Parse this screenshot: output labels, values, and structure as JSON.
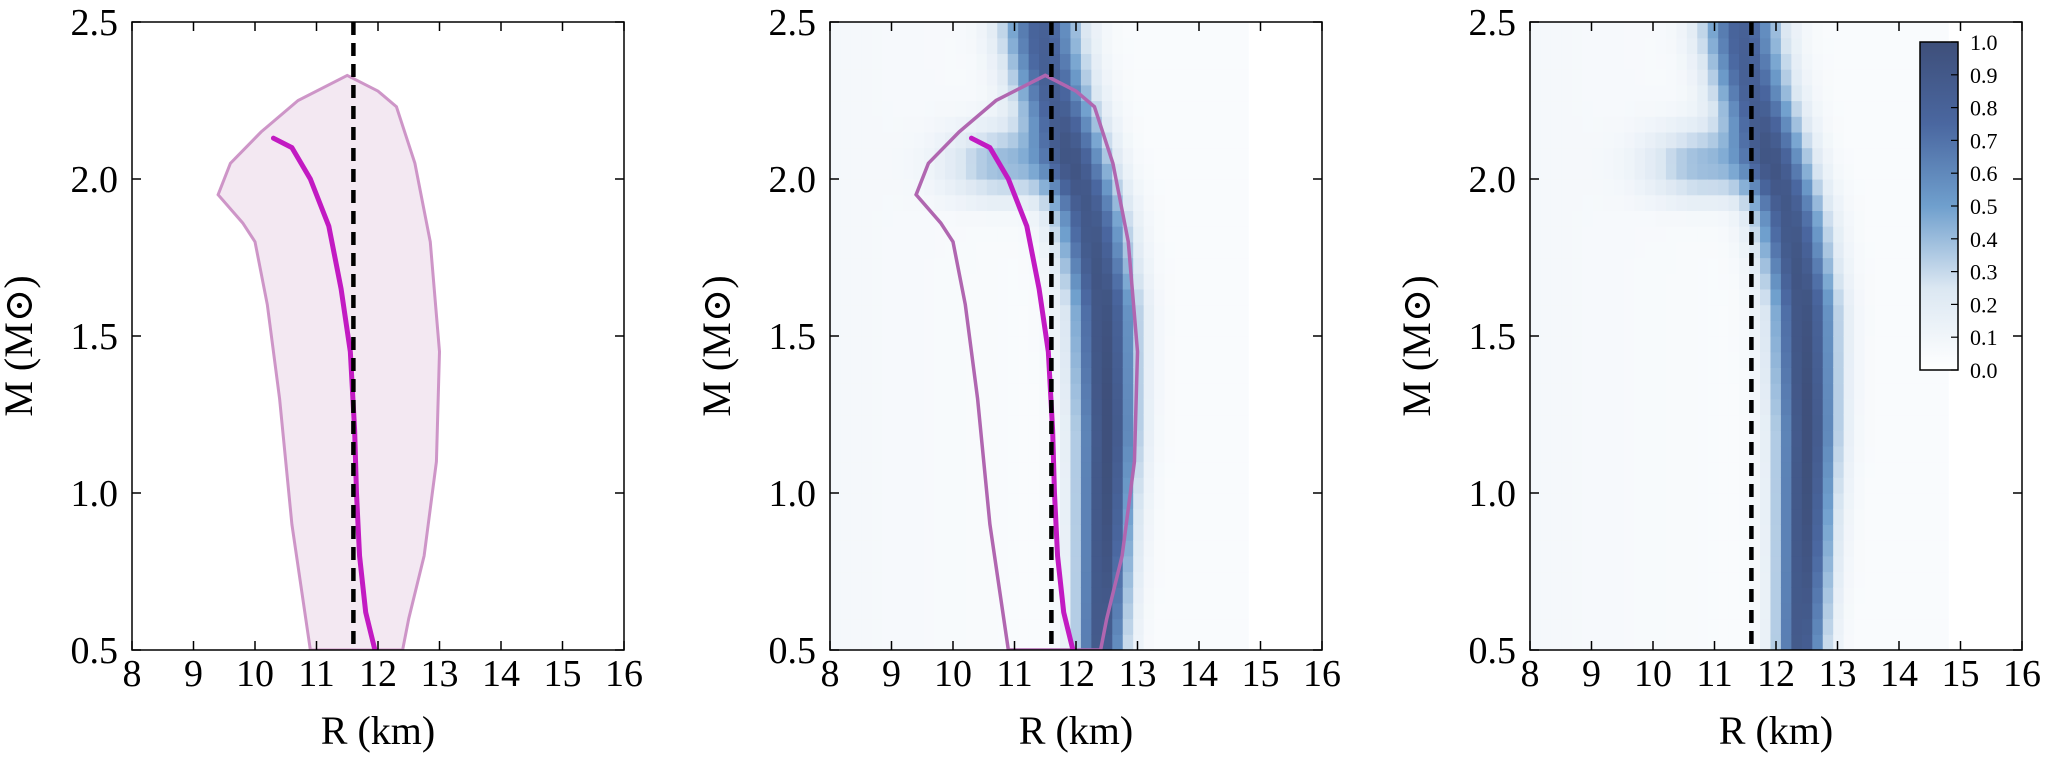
{
  "chart_data": [
    {
      "type": "line",
      "panel": "left",
      "xlabel": "R (km)",
      "ylabel": "M (M⊙)",
      "xlim": [
        8,
        16
      ],
      "ylim": [
        0.5,
        2.5
      ],
      "xticks": [
        "8",
        "9",
        "10",
        "11",
        "12",
        "13",
        "14",
        "15",
        "16"
      ],
      "yticks": [
        "0.5",
        "1.0",
        "1.5",
        "2.0",
        "2.5"
      ],
      "vline": {
        "x": 11.6,
        "style": "dashed",
        "color": "#000000"
      },
      "band": {
        "color": "#c98bc2",
        "fill": "#f3e8f2",
        "outline": [
          [
            10.9,
            0.5
          ],
          [
            10.6,
            0.9
          ],
          [
            10.4,
            1.3
          ],
          [
            10.2,
            1.6
          ],
          [
            10.0,
            1.8
          ],
          [
            9.8,
            1.86
          ],
          [
            9.4,
            1.95
          ],
          [
            9.6,
            2.05
          ],
          [
            10.1,
            2.15
          ],
          [
            10.7,
            2.25
          ],
          [
            11.5,
            2.33
          ],
          [
            12.0,
            2.28
          ],
          [
            12.3,
            2.23
          ],
          [
            12.6,
            2.05
          ],
          [
            12.85,
            1.8
          ],
          [
            13.0,
            1.45
          ],
          [
            12.95,
            1.1
          ],
          [
            12.75,
            0.8
          ],
          [
            12.5,
            0.6
          ],
          [
            12.4,
            0.5
          ]
        ]
      },
      "series": [
        {
          "color": "#c21ac2",
          "points": [
            [
              10.3,
              2.13
            ],
            [
              10.6,
              2.1
            ],
            [
              10.9,
              2.0
            ],
            [
              11.2,
              1.85
            ],
            [
              11.4,
              1.65
            ],
            [
              11.55,
              1.45
            ],
            [
              11.62,
              1.2
            ],
            [
              11.65,
              1.0
            ],
            [
              11.7,
              0.8
            ],
            [
              11.8,
              0.62
            ],
            [
              11.95,
              0.5
            ]
          ]
        }
      ]
    },
    {
      "type": "heatmap",
      "panel": "middle",
      "xlabel": "R (km)",
      "ylabel": "M (M⊙)",
      "xlim": [
        8,
        16
      ],
      "ylim": [
        0.5,
        2.5
      ],
      "xticks": [
        "8",
        "9",
        "10",
        "11",
        "12",
        "13",
        "14",
        "15",
        "16"
      ],
      "yticks": [
        "0.5",
        "1.0",
        "1.5",
        "2.0",
        "2.5"
      ],
      "vline": {
        "x": 11.6,
        "style": "dashed",
        "color": "#000000"
      },
      "heatmap_extent": {
        "x": [
          8,
          14.8
        ],
        "y": [
          0.5,
          2.5
        ]
      },
      "ridge": [
        [
          12.4,
          0.5
        ],
        [
          12.45,
          0.8
        ],
        [
          12.5,
          1.2
        ],
        [
          12.45,
          1.6
        ],
        [
          12.2,
          1.9
        ],
        [
          11.9,
          2.1
        ],
        [
          11.6,
          2.3
        ],
        [
          11.45,
          2.45
        ]
      ],
      "band": {
        "color": "#b066b0",
        "outline": [
          [
            10.9,
            0.5
          ],
          [
            10.6,
            0.9
          ],
          [
            10.4,
            1.3
          ],
          [
            10.2,
            1.6
          ],
          [
            10.0,
            1.8
          ],
          [
            9.8,
            1.86
          ],
          [
            9.4,
            1.95
          ],
          [
            9.6,
            2.05
          ],
          [
            10.1,
            2.15
          ],
          [
            10.7,
            2.25
          ],
          [
            11.5,
            2.33
          ],
          [
            12.0,
            2.28
          ],
          [
            12.3,
            2.23
          ],
          [
            12.6,
            2.05
          ],
          [
            12.85,
            1.8
          ],
          [
            13.0,
            1.45
          ],
          [
            12.95,
            1.1
          ],
          [
            12.75,
            0.8
          ],
          [
            12.5,
            0.6
          ],
          [
            12.4,
            0.5
          ]
        ]
      },
      "series": [
        {
          "color": "#c21ac2",
          "points": [
            [
              10.3,
              2.13
            ],
            [
              10.6,
              2.1
            ],
            [
              10.9,
              2.0
            ],
            [
              11.2,
              1.85
            ],
            [
              11.4,
              1.65
            ],
            [
              11.55,
              1.45
            ],
            [
              11.62,
              1.2
            ],
            [
              11.65,
              1.0
            ],
            [
              11.7,
              0.8
            ],
            [
              11.8,
              0.62
            ],
            [
              11.95,
              0.5
            ]
          ]
        }
      ]
    },
    {
      "type": "heatmap",
      "panel": "right",
      "xlabel": "R (km)",
      "ylabel": "M (M⊙)",
      "xlim": [
        8,
        16
      ],
      "ylim": [
        0.5,
        2.5
      ],
      "xticks": [
        "8",
        "9",
        "10",
        "11",
        "12",
        "13",
        "14",
        "15",
        "16"
      ],
      "yticks": [
        "0.5",
        "1.0",
        "1.5",
        "2.0",
        "2.5"
      ],
      "vline": {
        "x": 11.6,
        "style": "dashed",
        "color": "#000000"
      },
      "heatmap_extent": {
        "x": [
          8,
          14.8
        ],
        "y": [
          0.5,
          2.5
        ]
      },
      "ridge": [
        [
          12.4,
          0.5
        ],
        [
          12.45,
          0.8
        ],
        [
          12.5,
          1.2
        ],
        [
          12.45,
          1.6
        ],
        [
          12.2,
          1.9
        ],
        [
          11.9,
          2.1
        ],
        [
          11.6,
          2.3
        ],
        [
          11.45,
          2.45
        ]
      ],
      "colorbar": {
        "ticks": [
          "0.0",
          "0.1",
          "0.2",
          "0.3",
          "0.4",
          "0.5",
          "0.6",
          "0.7",
          "0.8",
          "0.9",
          "1.0"
        ],
        "range": [
          0,
          1
        ],
        "colors": [
          "#ffffff",
          "#dbe7f2",
          "#6f9fcd",
          "#4a67a0",
          "#3e4f7a"
        ]
      }
    }
  ]
}
